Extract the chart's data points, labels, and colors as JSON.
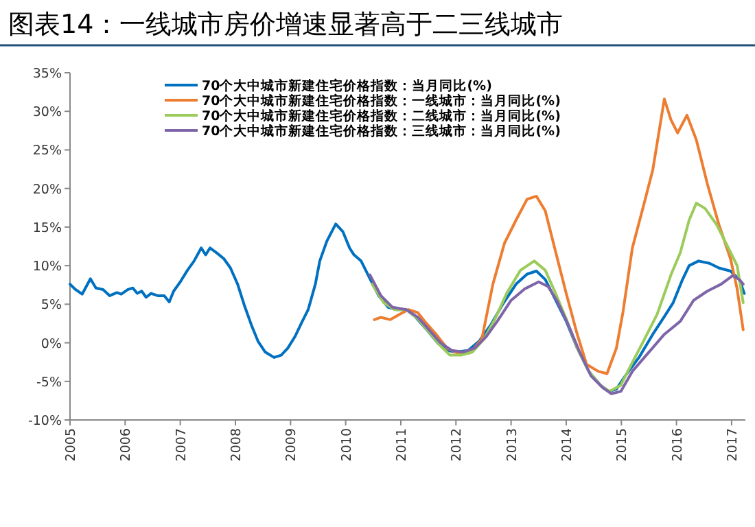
{
  "chart_data": {
    "type": "line",
    "title": "图表14：一线城市房价增速显著高于二三线城市",
    "xlim": [
      2005,
      2017.25
    ],
    "ylim": [
      -10,
      35
    ],
    "xticks": [
      2005,
      2006,
      2007,
      2008,
      2009,
      2010,
      2011,
      2012,
      2013,
      2014,
      2015,
      2016,
      2017
    ],
    "yticks": [
      {
        "value": -10,
        "label": "-10%"
      },
      {
        "value": -5,
        "label": "-5%"
      },
      {
        "value": 0,
        "label": "0%"
      },
      {
        "value": 5,
        "label": "5%"
      },
      {
        "value": 10,
        "label": "10%"
      },
      {
        "value": 15,
        "label": "15%"
      },
      {
        "value": 20,
        "label": "20%"
      },
      {
        "value": 25,
        "label": "25%"
      },
      {
        "value": 30,
        "label": "30%"
      },
      {
        "value": 35,
        "label": "35%"
      }
    ],
    "legend": "top",
    "series": [
      {
        "name": "70个大中城市新建住宅价格指数：当月同比(%)",
        "color": "#0070c0",
        "x": [
          2005.0,
          2005.1,
          2005.22,
          2005.37,
          2005.47,
          2005.6,
          2005.72,
          2005.85,
          2005.93,
          2006.05,
          2006.14,
          2006.22,
          2006.3,
          2006.38,
          2006.47,
          2006.59,
          2006.71,
          2006.8,
          2006.88,
          2007.0,
          2007.13,
          2007.25,
          2007.38,
          2007.46,
          2007.54,
          2007.67,
          2007.79,
          2007.91,
          2008.04,
          2008.16,
          2008.29,
          2008.41,
          2008.54,
          2008.7,
          2008.83,
          2008.95,
          2009.08,
          2009.2,
          2009.32,
          2009.45,
          2009.53,
          2009.66,
          2009.82,
          2009.95,
          2010.07,
          2010.15,
          2010.28,
          2010.44,
          2010.6,
          2010.77,
          2010.93,
          2011.1,
          2011.26,
          2011.47,
          2011.68,
          2011.84,
          2012.01,
          2012.22,
          2012.42,
          2012.63,
          2012.84,
          2013.09,
          2013.29,
          2013.46,
          2013.62,
          2013.79,
          2014.0,
          2014.2,
          2014.41,
          2014.62,
          2014.78,
          2014.91,
          2015.07,
          2015.32,
          2015.57,
          2015.78,
          2015.94,
          2016.11,
          2016.23,
          2016.4,
          2016.6,
          2016.77,
          2016.98,
          2017.14,
          2017.23
        ],
        "values": [
          7.6,
          6.9,
          6.3,
          8.3,
          7.1,
          6.9,
          6.1,
          6.5,
          6.3,
          6.9,
          7.1,
          6.4,
          6.7,
          5.9,
          6.4,
          6.1,
          6.1,
          5.3,
          6.7,
          7.9,
          9.4,
          10.6,
          12.3,
          11.4,
          12.3,
          11.6,
          10.9,
          9.7,
          7.6,
          4.9,
          2.3,
          0.2,
          -1.2,
          -1.9,
          -1.6,
          -0.7,
          0.8,
          2.6,
          4.3,
          7.6,
          10.6,
          13.2,
          15.4,
          14.4,
          12.3,
          11.4,
          10.6,
          8.3,
          6.1,
          4.6,
          4.3,
          4.3,
          3.4,
          1.7,
          -0.1,
          -1.0,
          -1.2,
          -1.0,
          0.2,
          2.3,
          4.9,
          7.6,
          8.9,
          9.3,
          8.2,
          5.8,
          2.8,
          -0.7,
          -3.7,
          -5.5,
          -6.3,
          -6.0,
          -4.3,
          -1.9,
          1.1,
          3.4,
          5.2,
          8.2,
          10.0,
          10.6,
          10.3,
          9.7,
          9.3,
          8.2,
          6.4
        ]
      },
      {
        "name": "70个大中城市新建住宅价格指数：一线城市：当月同比(%)",
        "color": "#ed7d31",
        "x": [
          2010.52,
          2010.64,
          2010.81,
          2010.98,
          2011.14,
          2011.31,
          2011.43,
          2011.64,
          2011.84,
          2012.05,
          2012.26,
          2012.47,
          2012.67,
          2012.88,
          2013.09,
          2013.29,
          2013.46,
          2013.62,
          2013.79,
          2014.0,
          2014.2,
          2014.37,
          2014.58,
          2014.74,
          2014.91,
          2015.03,
          2015.2,
          2015.4,
          2015.57,
          2015.78,
          2015.9,
          2016.02,
          2016.19,
          2016.36,
          2016.56,
          2016.77,
          2016.98,
          2017.1,
          2017.21
        ],
        "values": [
          3.0,
          3.3,
          3.0,
          3.7,
          4.3,
          3.9,
          2.8,
          1.1,
          -0.7,
          -1.4,
          -1.3,
          0.5,
          7.6,
          12.9,
          15.9,
          18.6,
          19.0,
          17.1,
          12.3,
          6.4,
          1.1,
          -2.8,
          -3.7,
          -4.0,
          -0.7,
          4.0,
          12.3,
          17.7,
          22.4,
          31.6,
          28.9,
          27.2,
          29.5,
          26.3,
          20.6,
          15.3,
          10.9,
          7.0,
          1.7
        ]
      },
      {
        "name": "70个大中城市新建住宅价格指数：二线城市：当月同比(%)",
        "color": "#9bcb5b",
        "x": [
          2010.48,
          2010.69,
          2010.89,
          2011.1,
          2011.31,
          2011.51,
          2011.72,
          2011.89,
          2012.09,
          2012.3,
          2012.51,
          2012.71,
          2012.92,
          2013.17,
          2013.42,
          2013.62,
          2013.79,
          2014.0,
          2014.2,
          2014.41,
          2014.62,
          2014.78,
          2014.99,
          2015.16,
          2015.4,
          2015.65,
          2015.9,
          2016.07,
          2016.23,
          2016.36,
          2016.52,
          2016.73,
          2016.94,
          2017.1,
          2017.21
        ],
        "values": [
          7.6,
          5.2,
          4.3,
          4.3,
          3.1,
          1.4,
          -0.4,
          -1.6,
          -1.6,
          -1.2,
          0.5,
          3.1,
          6.4,
          9.4,
          10.6,
          9.4,
          6.7,
          3.1,
          -0.7,
          -3.7,
          -5.5,
          -6.3,
          -5.5,
          -3.1,
          0.2,
          3.7,
          8.8,
          11.7,
          15.9,
          18.1,
          17.4,
          15.3,
          12.3,
          10.0,
          5.2
        ]
      },
      {
        "name": "70个大中城市新建住宅价格指数：三线城市：当月同比(%)",
        "color": "#7e64a8",
        "x": [
          2010.44,
          2010.64,
          2010.85,
          2011.1,
          2011.31,
          2011.51,
          2011.72,
          2011.93,
          2012.13,
          2012.34,
          2012.55,
          2012.75,
          2013.0,
          2013.25,
          2013.5,
          2013.67,
          2013.83,
          2014.04,
          2014.25,
          2014.45,
          2014.66,
          2014.82,
          2014.99,
          2015.2,
          2015.49,
          2015.78,
          2016.07,
          2016.31,
          2016.56,
          2016.81,
          2017.02,
          2017.14,
          2017.21
        ],
        "values": [
          8.8,
          6.1,
          4.6,
          4.3,
          3.3,
          1.7,
          0.0,
          -1.0,
          -1.2,
          -0.7,
          0.8,
          2.8,
          5.5,
          7.0,
          7.9,
          7.3,
          5.5,
          2.3,
          -1.3,
          -4.3,
          -5.8,
          -6.6,
          -6.3,
          -3.7,
          -1.3,
          1.1,
          2.8,
          5.5,
          6.7,
          7.6,
          8.7,
          8.2,
          7.6
        ]
      }
    ]
  }
}
